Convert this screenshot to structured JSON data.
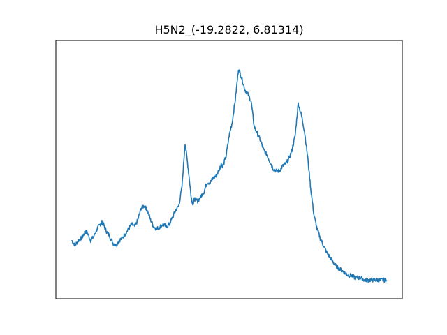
{
  "chart_data": {
    "type": "line",
    "title": "H5N2_(-19.2822, 6.81314)",
    "xlabel": "",
    "ylabel": "",
    "x_ticks_visible": false,
    "y_ticks_visible": false,
    "grid": false,
    "legend": "none",
    "xlim": [
      0,
      1000
    ],
    "ylim": [
      0,
      1
    ],
    "series": [
      {
        "color": "#1f77b4",
        "x": [
          0,
          10,
          20,
          30,
          40,
          45,
          50,
          60,
          70,
          80,
          90,
          95,
          100,
          110,
          120,
          130,
          140,
          150,
          160,
          170,
          180,
          190,
          200,
          210,
          220,
          230,
          240,
          250,
          260,
          270,
          280,
          290,
          300,
          310,
          320,
          330,
          340,
          350,
          360,
          370,
          380,
          385,
          390,
          400,
          410,
          420,
          430,
          440,
          450,
          460,
          470,
          475,
          480,
          490,
          500,
          510,
          520,
          530,
          540,
          550,
          560,
          570,
          580,
          590,
          600,
          610,
          620,
          630,
          640,
          650,
          660,
          670,
          680,
          690,
          700,
          710,
          720,
          730,
          740,
          750,
          760,
          770,
          780,
          790,
          800,
          810,
          820,
          830,
          840,
          850,
          860,
          870,
          880,
          890,
          900,
          910,
          920,
          930,
          940,
          950,
          960,
          970,
          980,
          990,
          1000
        ],
        "values": [
          0.19,
          0.17,
          0.19,
          0.2,
          0.22,
          0.23,
          0.22,
          0.19,
          0.21,
          0.24,
          0.26,
          0.27,
          0.26,
          0.23,
          0.21,
          0.18,
          0.17,
          0.19,
          0.2,
          0.22,
          0.24,
          0.26,
          0.25,
          0.28,
          0.33,
          0.34,
          0.32,
          0.28,
          0.25,
          0.24,
          0.25,
          0.26,
          0.25,
          0.26,
          0.29,
          0.32,
          0.34,
          0.42,
          0.61,
          0.5,
          0.37,
          0.35,
          0.37,
          0.36,
          0.38,
          0.4,
          0.44,
          0.44,
          0.46,
          0.47,
          0.5,
          0.52,
          0.51,
          0.55,
          0.64,
          0.7,
          0.8,
          0.93,
          0.89,
          0.84,
          0.82,
          0.79,
          0.68,
          0.65,
          0.62,
          0.58,
          0.56,
          0.53,
          0.5,
          0.49,
          0.49,
          0.51,
          0.52,
          0.54,
          0.58,
          0.64,
          0.78,
          0.73,
          0.66,
          0.55,
          0.41,
          0.3,
          0.24,
          0.2,
          0.17,
          0.14,
          0.12,
          0.1,
          0.08,
          0.07,
          0.06,
          0.05,
          0.04,
          0.04,
          0.03,
          0.03,
          0.03,
          0.02,
          0.02,
          0.02,
          0.02,
          0.02,
          0.02,
          0.02,
          0.02
        ]
      }
    ]
  }
}
